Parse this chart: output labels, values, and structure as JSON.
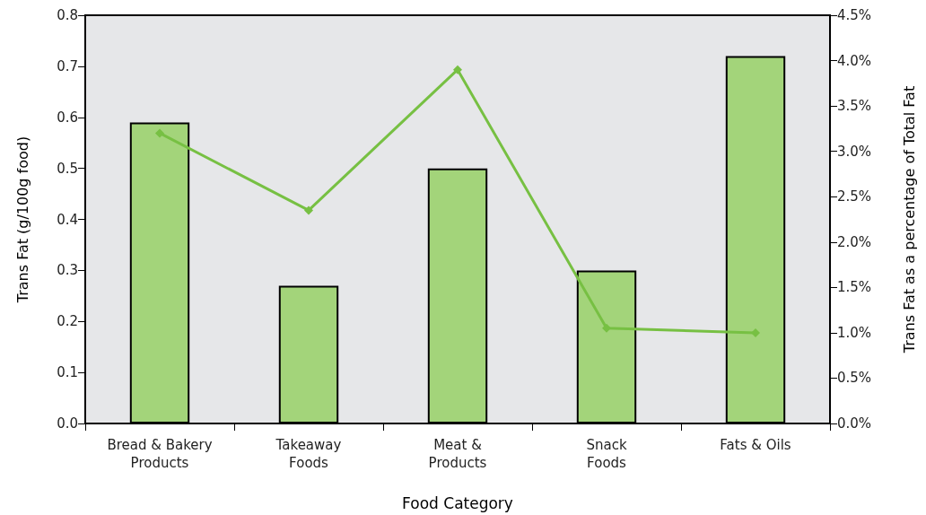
{
  "chart_data": {
    "type": "bar",
    "xlabel": "Food Category",
    "ylabel": "Trans Fat (g/100g food)",
    "y2label": "Trans Fat as a percentage of Total Fat",
    "categories": [
      "Bread & Bakery\nProducts",
      "Takeaway\nFoods",
      "Meat &\nProducts",
      "Snack\nFoods",
      "Fats & Oils"
    ],
    "series": [
      {
        "color": "#a3d47a",
        "values": [
          0.59,
          0.27,
          0.5,
          0.3,
          0.72
        ]
      },
      {
        "type": "line",
        "axis": "y2",
        "color": "#77c043",
        "marker": "diamond",
        "values": [
          3.2,
          2.35,
          3.9,
          1.05,
          1.0
        ]
      }
    ],
    "ylim": [
      0,
      0.8
    ],
    "yticks": [
      {
        "value": 0,
        "label": "0.0"
      },
      0.1,
      0.2,
      0.3,
      0.4,
      0.5,
      0.6,
      0.7,
      0.8
    ],
    "y2lim": [
      0,
      4.5
    ],
    "y2ticks": [
      {
        "value": 0,
        "label": "0.0%"
      },
      {
        "value": 0.5,
        "label": "0.5%"
      },
      {
        "value": 1,
        "label": "1.0%"
      },
      {
        "value": 1.5,
        "label": "1.5%"
      },
      {
        "value": 2,
        "label": "2.0%"
      },
      {
        "value": 2.5,
        "label": "2.5%"
      },
      {
        "value": 3,
        "label": "3.0%"
      },
      {
        "value": 3.5,
        "label": "3.5%"
      },
      {
        "value": 4,
        "label": "4.0%"
      },
      {
        "value": 4.5,
        "label": "4.5%"
      }
    ],
    "grid": false
  }
}
